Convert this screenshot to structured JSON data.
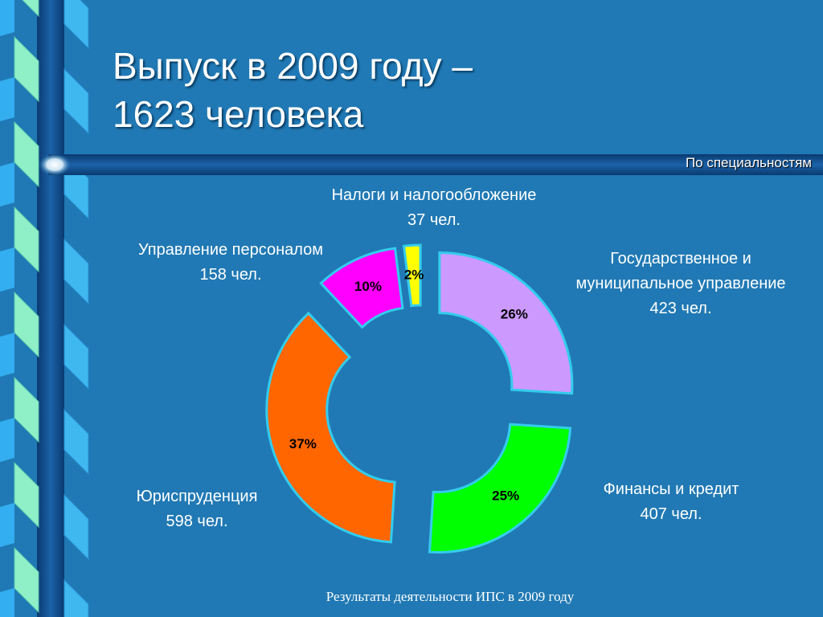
{
  "slide": {
    "title": [
      "Выпуск в 2009 году –",
      "1623 человека"
    ],
    "subtitle": "По специальностям",
    "footer": "Результаты деятельности ИПС в 2009 году"
  },
  "chart_data": {
    "type": "donut",
    "categories": [
      "Государственное и муниципальное управление",
      "Финансы и кредит",
      "Юриспруденция",
      "Управление персоналом",
      "Налоги и налогообложение"
    ],
    "values": [
      26,
      25,
      37,
      10,
      2
    ],
    "value_labels": [
      "26%",
      "25%",
      "37%",
      "10%",
      "2%"
    ],
    "count_labels": [
      "423 чел.",
      "407 чел.",
      "598 чел.",
      "158 чел.",
      "37 чел."
    ],
    "colors": [
      "#cc99ff",
      "#00ff00",
      "#ff6600",
      "#ff00ff",
      "#ffff00"
    ]
  }
}
